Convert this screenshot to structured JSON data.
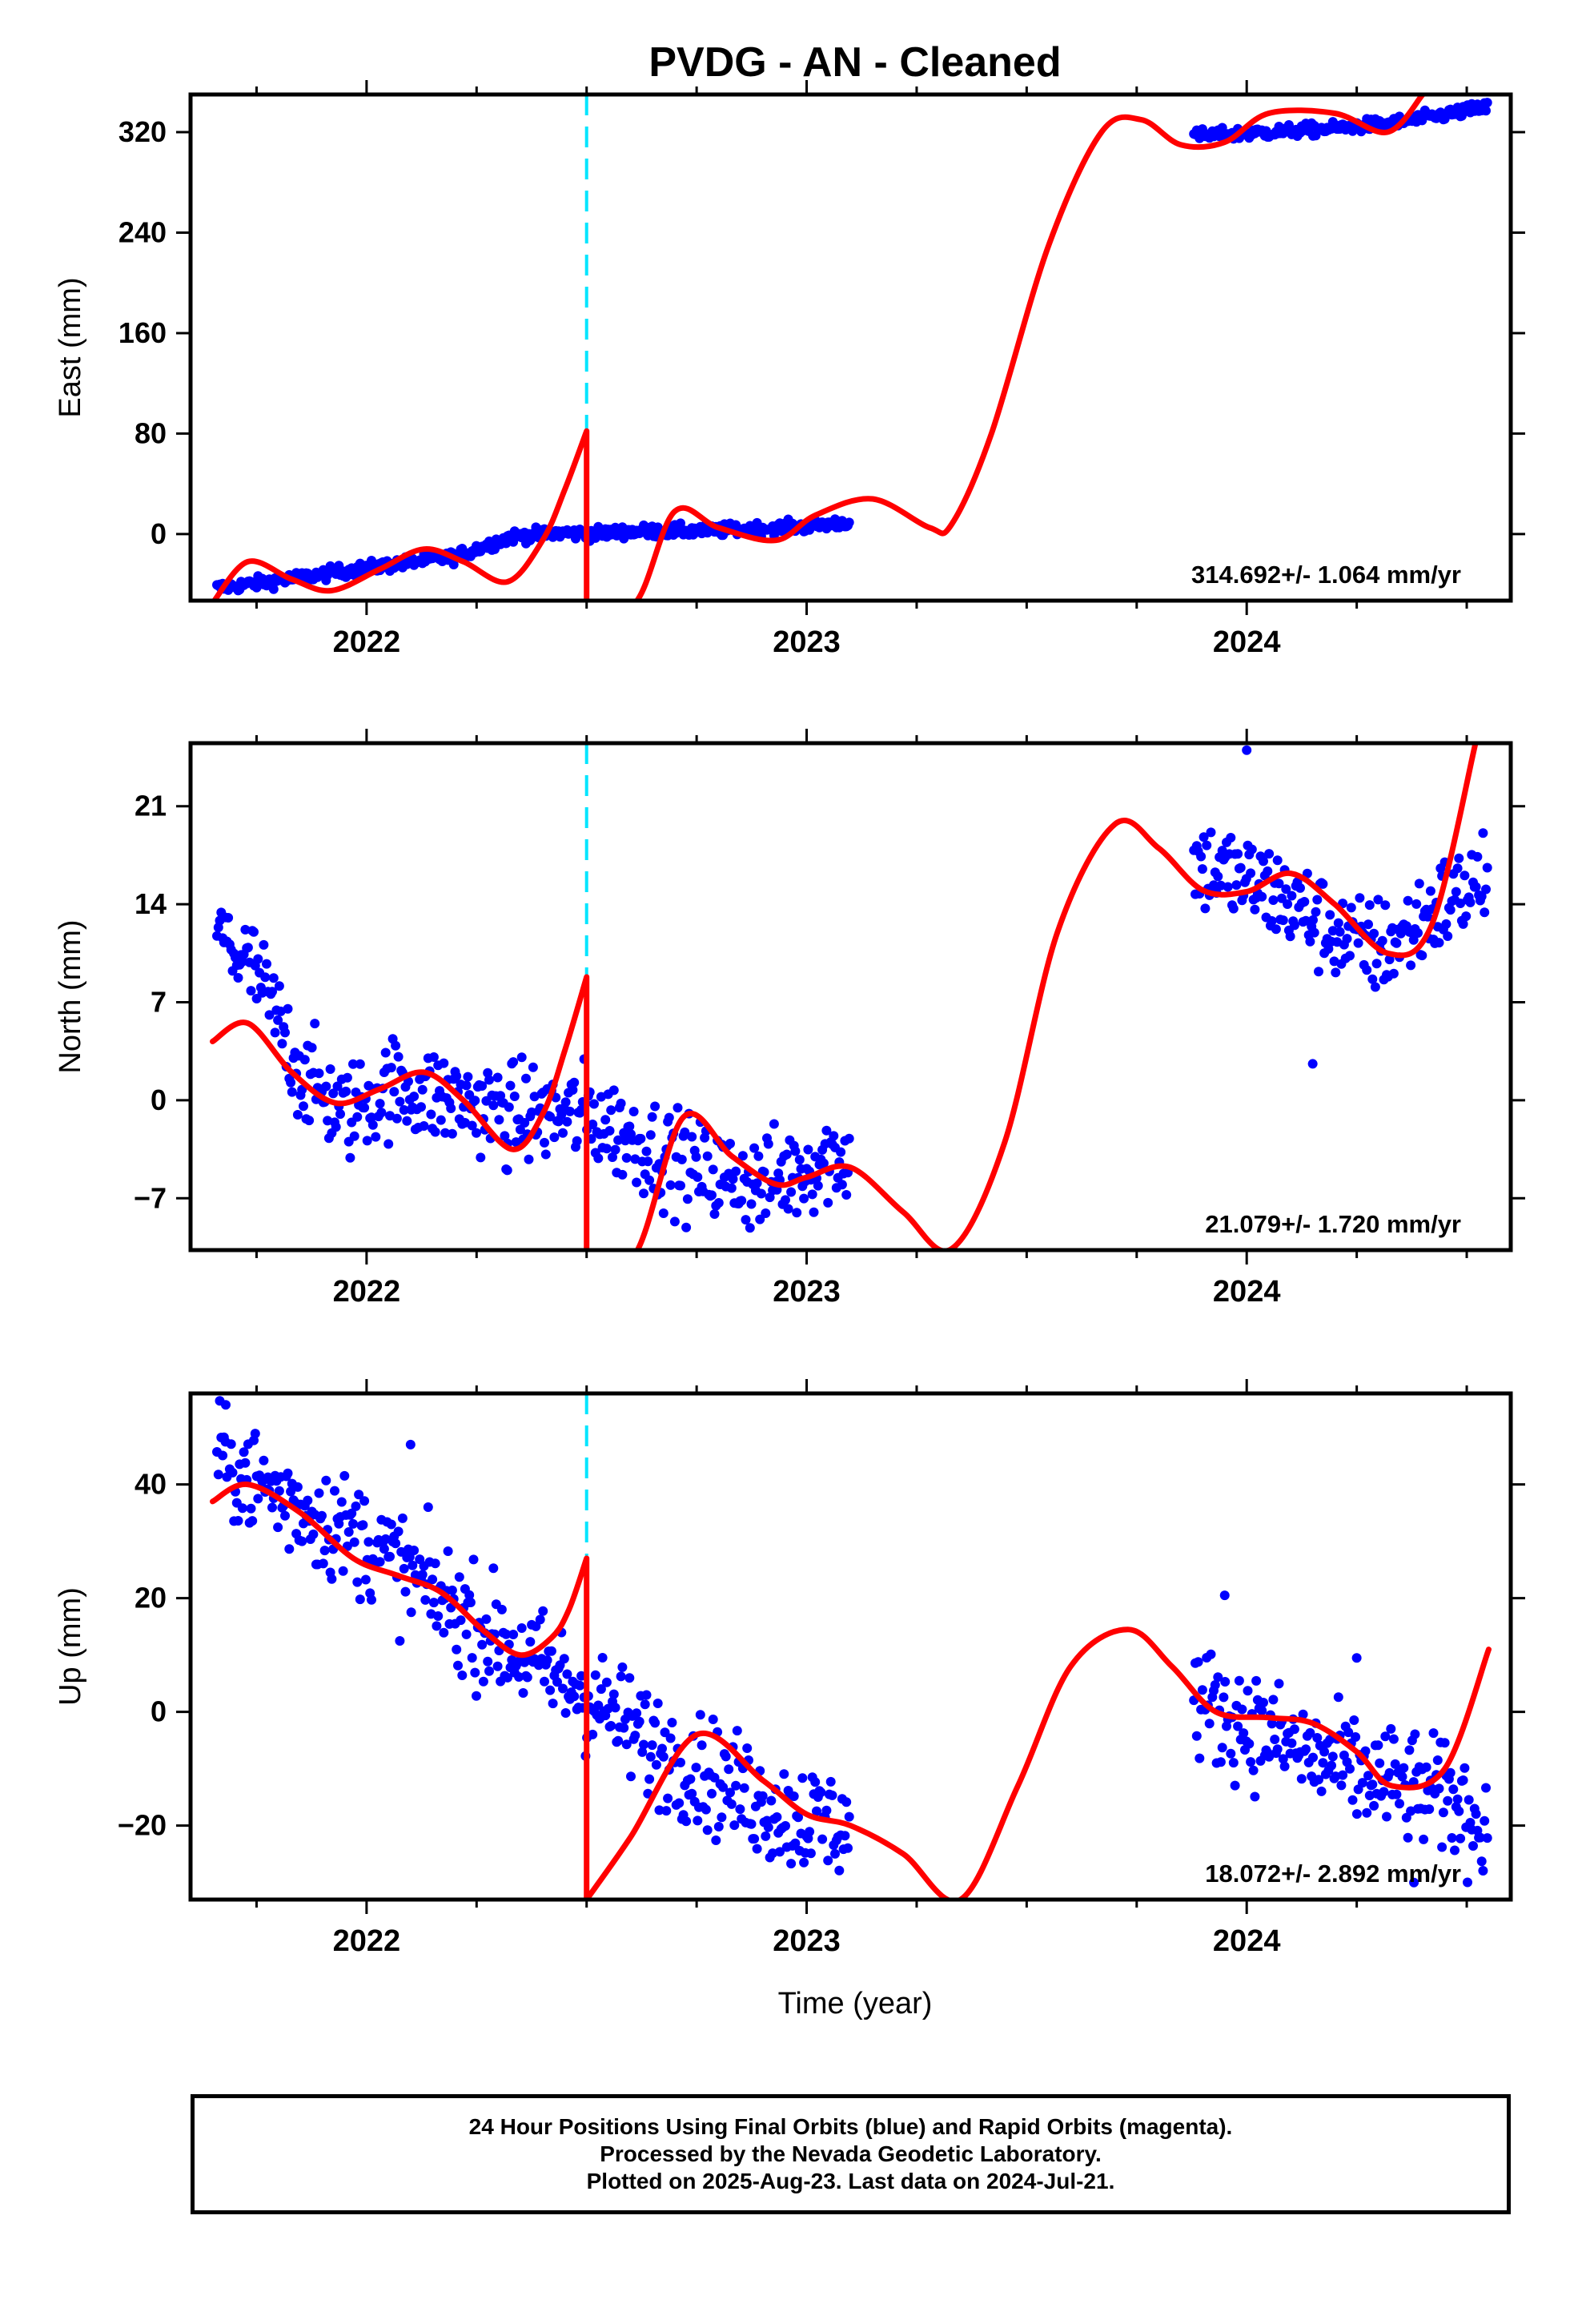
{
  "title": "PVDG  - AN - Cleaned",
  "xlabel": "Time (year)",
  "xticks": [
    2022,
    2023,
    2024
  ],
  "xlim": [
    2021.6,
    2024.6
  ],
  "offset_epoch": 2022.5,
  "footer": {
    "line1": "24 Hour Positions Using Final Orbits (blue) and Rapid Orbits (magenta).",
    "line2": "Processed by the Nevada Geodetic Laboratory.",
    "line3": "Plotted on 2025-Aug-23. Last data on 2024-Jul-21."
  },
  "colors": {
    "data": "#0000ff",
    "model": "#ff0000",
    "offset_line": "#00e5ff",
    "frame": "#000000"
  },
  "chart_data": [
    {
      "type": "scatter",
      "panel": "east",
      "ylabel": "East (mm)",
      "ylim": [
        -53,
        350
      ],
      "yticks": [
        0,
        80,
        160,
        240,
        320
      ],
      "rate_label": "314.692+/- 1.064 mm/yr",
      "scatter_noise": 2.5,
      "data_segments": [
        {
          "x": [
            2021.66,
            2021.8,
            2022.0,
            2022.2,
            2022.33,
            2022.45,
            2022.5,
            2022.6,
            2022.8,
            2023.0,
            2023.1
          ],
          "y": [
            -43,
            -37,
            -27,
            -18,
            -2,
            1,
            0,
            2,
            3,
            6,
            10
          ]
        },
        {
          "x": [
            2023.88,
            2023.95,
            2024.05,
            2024.2,
            2024.35,
            2024.55
          ],
          "y": [
            317,
            318,
            320,
            323,
            328,
            340
          ]
        }
      ],
      "model": {
        "x": [
          2021.65,
          2021.73,
          2021.83,
          2021.92,
          2022.03,
          2022.13,
          2022.22,
          2022.32,
          2022.4,
          2022.45,
          2022.5,
          2022.5,
          2022.61,
          2022.7,
          2022.8,
          2022.93,
          2023.02,
          2023.15,
          2023.28,
          2023.33,
          2023.42,
          2023.55,
          2023.67,
          2023.76,
          2023.85,
          2023.95,
          2024.05,
          2024.2,
          2024.32,
          2024.4
        ],
        "y": [
          -55,
          -22,
          -36,
          -45,
          -28,
          -12,
          -22,
          -38,
          -5,
          35,
          82,
          -55,
          -55,
          18,
          5,
          -5,
          15,
          28,
          5,
          8,
          80,
          230,
          320,
          330,
          310,
          312,
          335,
          335,
          320,
          350
        ]
      }
    },
    {
      "type": "scatter",
      "panel": "north",
      "ylabel": "North (mm)",
      "ylim": [
        -10.7,
        25.5
      ],
      "yticks": [
        -7,
        0,
        7,
        14,
        21
      ],
      "rate_label": "21.079+/- 1.720 mm/yr",
      "scatter_noise": 1.8,
      "data_segments": [
        {
          "x": [
            2021.66,
            2021.75,
            2021.85,
            2021.95,
            2022.05,
            2022.2,
            2022.35,
            2022.5,
            2022.62,
            2022.75,
            2022.9,
            2023.05,
            2023.1
          ],
          "y": [
            12,
            9,
            2,
            -1,
            1,
            0,
            -1,
            -1,
            -3,
            -5,
            -6,
            -4,
            -4
          ]
        },
        {
          "x": [
            2023.88,
            2023.97,
            2024.05,
            2024.15,
            2024.25,
            2024.32,
            2024.45,
            2024.55
          ],
          "y": [
            17,
            16,
            15,
            13,
            11,
            11,
            14,
            16
          ]
        }
      ],
      "outliers": [
        {
          "x": 2022.32,
          "y": -5
        },
        {
          "x": 2024.0,
          "y": 25
        },
        {
          "x": 2024.15,
          "y": 2.6
        }
      ],
      "model": {
        "x": [
          2021.65,
          2021.73,
          2021.83,
          2021.93,
          2022.03,
          2022.13,
          2022.22,
          2022.33,
          2022.4,
          2022.45,
          2022.5,
          2022.5,
          2022.61,
          2022.72,
          2022.83,
          2022.93,
          2023.0,
          2023.1,
          2023.22,
          2023.33,
          2023.45,
          2023.57,
          2023.7,
          2023.8,
          2023.9,
          2024.0,
          2024.1,
          2024.2,
          2024.32,
          2024.42,
          2024.52
        ],
        "y": [
          4.2,
          5.5,
          2.0,
          -0.2,
          0.8,
          2.0,
          0.0,
          -3.5,
          -1.0,
          3.5,
          8.8,
          -11.0,
          -11.0,
          -1.2,
          -4.0,
          -6.0,
          -5.5,
          -4.8,
          -8.0,
          -10.6,
          -3.0,
          12.0,
          19.7,
          18.0,
          15.0,
          14.9,
          16.2,
          14.0,
          10.5,
          12.5,
          25.5
        ]
      }
    },
    {
      "type": "scatter",
      "panel": "up",
      "ylabel": "Up (mm)",
      "ylim": [
        -33,
        56
      ],
      "yticks": [
        -20,
        0,
        20,
        40
      ],
      "rate_label": "18.072+/- 2.892 mm/yr",
      "scatter_noise": 5.0,
      "data_segments": [
        {
          "x": [
            2021.66,
            2021.8,
            2022.0,
            2022.2,
            2022.35,
            2022.5,
            2022.65,
            2022.8,
            2022.95,
            2023.1
          ],
          "y": [
            45,
            38,
            30,
            18,
            10,
            3,
            -6,
            -12,
            -18,
            -20
          ]
        },
        {
          "x": [
            2023.88,
            2024.0,
            2024.15,
            2024.3,
            2024.45,
            2024.55
          ],
          "y": [
            2,
            -2,
            -8,
            -12,
            -15,
            -20
          ]
        }
      ],
      "outliers": [
        {
          "x": 2021.68,
          "y": 54
        },
        {
          "x": 2022.1,
          "y": 47
        },
        {
          "x": 2023.95,
          "y": 20.5
        },
        {
          "x": 2024.25,
          "y": 9.5
        },
        {
          "x": 2024.38,
          "y": -30
        }
      ],
      "model": {
        "x": [
          2021.65,
          2021.73,
          2021.85,
          2021.97,
          2022.07,
          2022.17,
          2022.27,
          2022.35,
          2022.42,
          2022.46,
          2022.5,
          2022.5,
          2022.6,
          2022.75,
          2022.9,
          2023.0,
          2023.1,
          2023.22,
          2023.35,
          2023.48,
          2023.6,
          2023.73,
          2023.83,
          2023.93,
          2024.05,
          2024.15,
          2024.25,
          2024.33,
          2024.45,
          2024.55
        ],
        "y": [
          37,
          40,
          35,
          27,
          24,
          21,
          14,
          10,
          13,
          18,
          27,
          -33,
          -22,
          -4,
          -12,
          -18,
          -20,
          -25,
          -33,
          -13,
          8,
          14.5,
          8,
          0,
          -1,
          -2,
          -7,
          -13,
          -10,
          11
        ]
      }
    }
  ]
}
